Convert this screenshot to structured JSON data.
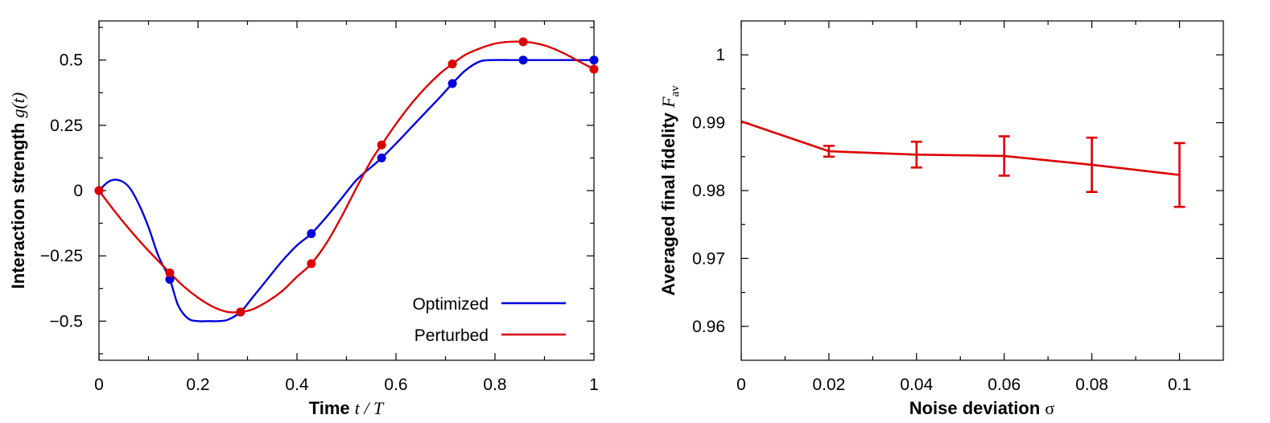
{
  "chart_data": [
    {
      "type": "line",
      "xlabel": {
        "text": "Time",
        "math": "t / T"
      },
      "ylabel": {
        "text": "Interaction strength",
        "math": "g(t)"
      },
      "xlim": [
        0,
        1
      ],
      "ylim": [
        -0.65,
        0.65
      ],
      "xticks": [
        "0",
        "0.2",
        "0.4",
        "0.6",
        "0.8",
        "1"
      ],
      "yticks": [
        "0.5",
        "0.25",
        "0",
        "−0.25",
        "−0.5"
      ],
      "legend_position": "bottom-right",
      "series": [
        {
          "name": "Optimized",
          "color": "#0000dd",
          "curve_x": [
            0,
            0.02,
            0.04,
            0.06,
            0.08,
            0.1,
            0.12,
            0.143,
            0.16,
            0.18,
            0.2,
            0.22,
            0.24,
            0.26,
            0.286,
            0.31,
            0.34,
            0.37,
            0.4,
            0.429,
            0.46,
            0.49,
            0.52,
            0.55,
            0.571,
            0.6,
            0.63,
            0.66,
            0.69,
            0.714,
            0.74,
            0.77,
            0.8,
            0.83,
            0.857,
            0.88,
            0.91,
            0.94,
            0.97,
            1.0
          ],
          "curve_y": [
            0,
            0.035,
            0.04,
            0.015,
            -0.05,
            -0.14,
            -0.25,
            -0.34,
            -0.44,
            -0.49,
            -0.5,
            -0.5,
            -0.5,
            -0.495,
            -0.465,
            -0.41,
            -0.34,
            -0.27,
            -0.21,
            -0.165,
            -0.1,
            -0.03,
            0.04,
            0.09,
            0.125,
            0.18,
            0.24,
            0.3,
            0.36,
            0.41,
            0.46,
            0.495,
            0.5,
            0.5,
            0.5,
            0.5,
            0.5,
            0.5,
            0.5,
            0.5
          ],
          "markers_x": [
            0,
            0.143,
            0.286,
            0.429,
            0.571,
            0.714,
            0.857,
            1.0
          ],
          "markers_y": [
            0,
            -0.34,
            -0.465,
            -0.165,
            0.125,
            0.41,
            0.5,
            0.5
          ]
        },
        {
          "name": "Perturbed",
          "color": "#dd0000",
          "curve_x": [
            0,
            0.03,
            0.06,
            0.09,
            0.12,
            0.143,
            0.17,
            0.2,
            0.23,
            0.26,
            0.286,
            0.31,
            0.34,
            0.37,
            0.4,
            0.429,
            0.46,
            0.49,
            0.52,
            0.55,
            0.571,
            0.6,
            0.63,
            0.66,
            0.69,
            0.714,
            0.74,
            0.77,
            0.8,
            0.83,
            0.857,
            0.88,
            0.91,
            0.94,
            0.97,
            1.0
          ],
          "curve_y": [
            0,
            -0.075,
            -0.145,
            -0.21,
            -0.27,
            -0.315,
            -0.365,
            -0.41,
            -0.445,
            -0.465,
            -0.465,
            -0.455,
            -0.425,
            -0.385,
            -0.33,
            -0.28,
            -0.2,
            -0.1,
            0.01,
            0.115,
            0.175,
            0.255,
            0.33,
            0.395,
            0.45,
            0.485,
            0.52,
            0.545,
            0.563,
            0.57,
            0.57,
            0.565,
            0.55,
            0.525,
            0.495,
            0.465
          ],
          "markers_x": [
            0,
            0.143,
            0.286,
            0.429,
            0.571,
            0.714,
            0.857,
            1.0
          ],
          "markers_y": [
            0,
            -0.315,
            -0.465,
            -0.28,
            0.175,
            0.485,
            0.57,
            0.465
          ]
        }
      ]
    },
    {
      "type": "line",
      "xlabel": {
        "text": "Noise deviation",
        "math": "σ"
      },
      "ylabel": {
        "text": "Averaged final fidelity",
        "math": "F",
        "math_sub": "av"
      },
      "xlim": [
        0,
        0.11
      ],
      "ylim": [
        0.955,
        1.005
      ],
      "xticks": [
        "0",
        "0.02",
        "0.04",
        "0.06",
        "0.08",
        "0.1"
      ],
      "yticks": [
        "1",
        "0.99",
        "0.98",
        "0.97",
        "0.96"
      ],
      "series": [
        {
          "color": "#dd0000",
          "x": [
            0,
            0.02,
            0.04,
            0.06,
            0.08,
            0.1
          ],
          "y": [
            0.9902,
            0.9858,
            0.9853,
            0.9851,
            0.9838,
            0.9823
          ],
          "err": [
            0,
            0.0008,
            0.0019,
            0.0029,
            0.004,
            0.0047
          ]
        }
      ]
    }
  ]
}
